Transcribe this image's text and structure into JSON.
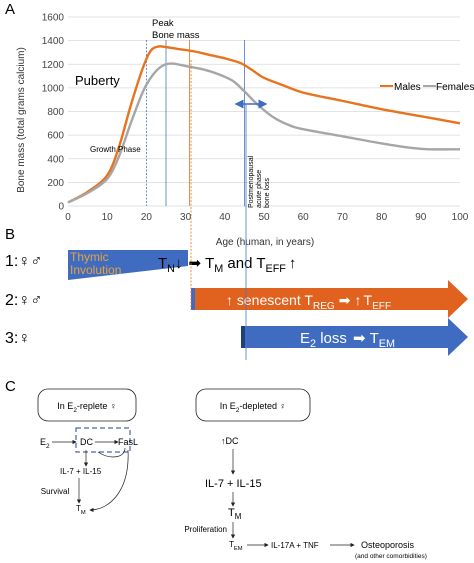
{
  "panel_a": {
    "letter": "A",
    "annotations": {
      "peak_line1": "Peak",
      "peak_line2": "Bone mass",
      "puberty": "Puberty",
      "growth_phase": "Growth Phase",
      "postmeno_1": "Postmenopausal",
      "postmeno_2": "acute phase",
      "postmeno_3": "bone loss"
    },
    "colors": {
      "males": "#e8731f",
      "females": "#a6a6a6",
      "vline_blue": "#4a74c4",
      "vline_orange": "#e8731f"
    }
  },
  "chart_data": {
    "type": "line",
    "xlabel": "Age (human, in years)",
    "ylabel": "Bone mass (total grams calcium)",
    "xlim": [
      0,
      100
    ],
    "ylim": [
      0,
      1600
    ],
    "xticks": [
      "0",
      "10",
      "20",
      "30",
      "40",
      "50",
      "60",
      "70",
      "80",
      "90",
      "100"
    ],
    "yticks": [
      "0",
      "200",
      "400",
      "600",
      "800",
      "1000",
      "1200",
      "1400",
      "1600"
    ],
    "grid": "horizontal",
    "legend": "top-right",
    "series": [
      {
        "name": "Males",
        "color": "#e8731f",
        "x": [
          0,
          5,
          10,
          13,
          16,
          19,
          21,
          23,
          25,
          28,
          32,
          36,
          40,
          44,
          47,
          50,
          55,
          60,
          70,
          80,
          90,
          100
        ],
        "y": [
          30,
          120,
          260,
          500,
          850,
          1160,
          1310,
          1350,
          1345,
          1330,
          1310,
          1280,
          1250,
          1210,
          1150,
          1085,
          1020,
          960,
          890,
          820,
          760,
          700
        ]
      },
      {
        "name": "Females",
        "color": "#a6a6a6",
        "x": [
          0,
          5,
          10,
          13,
          16,
          19,
          21,
          23,
          25,
          27,
          30,
          34,
          38,
          42,
          45,
          48,
          52,
          56,
          60,
          70,
          80,
          88,
          92,
          100
        ],
        "y": [
          30,
          110,
          230,
          420,
          700,
          960,
          1080,
          1160,
          1200,
          1205,
          1185,
          1160,
          1120,
          1060,
          970,
          870,
          760,
          690,
          650,
          590,
          530,
          490,
          480,
          480
        ]
      }
    ],
    "vlines": [
      {
        "x": 20,
        "color": "#4a74c4"
      },
      {
        "x": 25,
        "color": "#4a74c4"
      },
      {
        "x": 31,
        "color": "#e8731f"
      },
      {
        "x": 45,
        "color": "#4a74c4"
      }
    ]
  },
  "panel_b": {
    "letter": "B",
    "row1": {
      "label": "1:♀♂",
      "thymic_1": "Thymic",
      "thymic_2": "Involution",
      "t": "T",
      "n": "N",
      "down": "↓",
      "arrow": "➡",
      "m": "M",
      "and": " and ",
      "eff": "EFF",
      "up": "↑"
    },
    "row2": {
      "label": "2:♀♂",
      "up": "↑",
      "senescent": " senescent ",
      "t": "T",
      "reg": "REG",
      "arrow": "➡",
      "up2": "↑",
      "eff": "EFF"
    },
    "row3": {
      "label": "3:♀",
      "e": "E",
      "two": "2",
      "loss": " loss ",
      "arrow": "➡",
      "t": "T",
      "em": "EM"
    },
    "colors": {
      "thymic_fill": "#3f6cc0",
      "thymic_text": "#e8a33a",
      "orange_bar": "#e0621e",
      "blue_bar": "#3f6cc0"
    }
  },
  "panel_c": {
    "letter": "C",
    "left": {
      "box_pre": "In E",
      "box_sub": "2",
      "box_post": "-replete ♀",
      "e2": "E",
      "e2_sub": "2",
      "dc": "DC",
      "fasl": "FasL",
      "il": "IL-7 + IL-15",
      "survival": "Survival",
      "tm": "T",
      "tm_sub": "M"
    },
    "right": {
      "box_pre": "In E",
      "box_sub": "2",
      "box_post": "-depleted ♀",
      "dc": "↑DC",
      "il": "IL-7 + IL-15",
      "tm": "T",
      "tm_sub": "M",
      "proliferation": "Proliferation",
      "tem": "T",
      "tem_sub": "EM",
      "il17": "IL-17A + TNF",
      "osteo": "Osteoporosis",
      "comorb": "(and other comorbidities)"
    }
  }
}
